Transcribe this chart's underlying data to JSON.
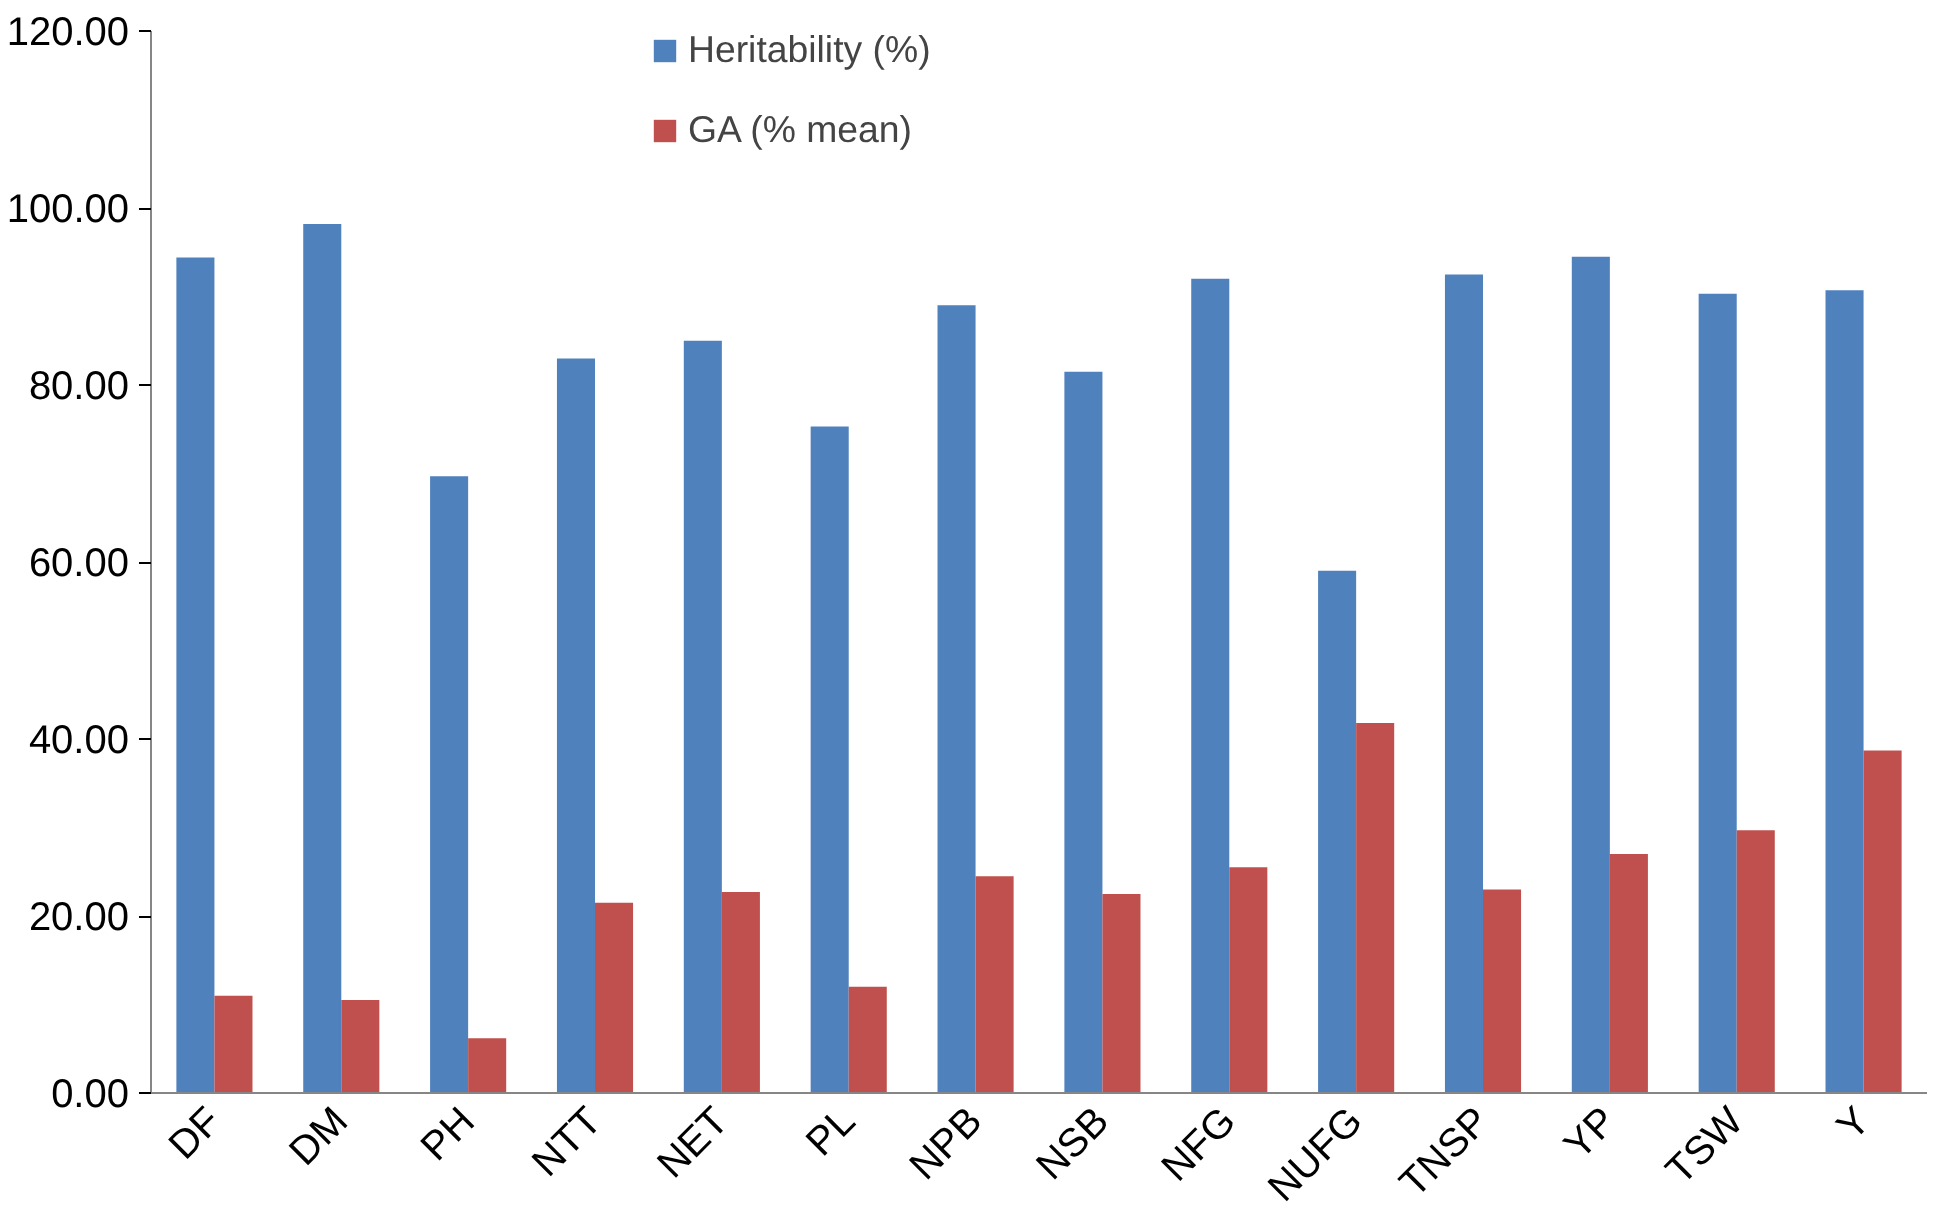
{
  "chart_data": {
    "type": "bar",
    "categories": [
      "DF",
      "DM",
      "PH",
      "NTT",
      "NET",
      "PL",
      "NPB",
      "NSB",
      "NFG",
      "NUFG",
      "TNSP",
      "YP",
      "TSW",
      "Y"
    ],
    "series": [
      {
        "name": "Heritability (%)",
        "color": "#4f81bd",
        "values": [
          94.4,
          98.2,
          69.7,
          83,
          85,
          75.3,
          89,
          81.5,
          92,
          59,
          92.5,
          94.5,
          90.3,
          90.7
        ]
      },
      {
        "name": "GA (% mean)",
        "color": "#c0504d",
        "values": [
          11,
          10.5,
          6.2,
          21.5,
          22.7,
          12,
          24.5,
          22.5,
          25.5,
          41.8,
          23,
          27,
          29.7,
          38.7
        ]
      }
    ],
    "ylim": [
      0,
      120
    ],
    "yticks": [
      {
        "value": 0,
        "label": "0.00"
      },
      {
        "value": 20,
        "label": "20.00"
      },
      {
        "value": 40,
        "label": "40.00"
      },
      {
        "value": 60,
        "label": "60.00"
      },
      {
        "value": 80,
        "label": "80.00"
      },
      {
        "value": 100,
        "label": "100.00"
      },
      {
        "value": 120,
        "label": "120.00"
      }
    ],
    "grid": false,
    "legend": "top"
  }
}
